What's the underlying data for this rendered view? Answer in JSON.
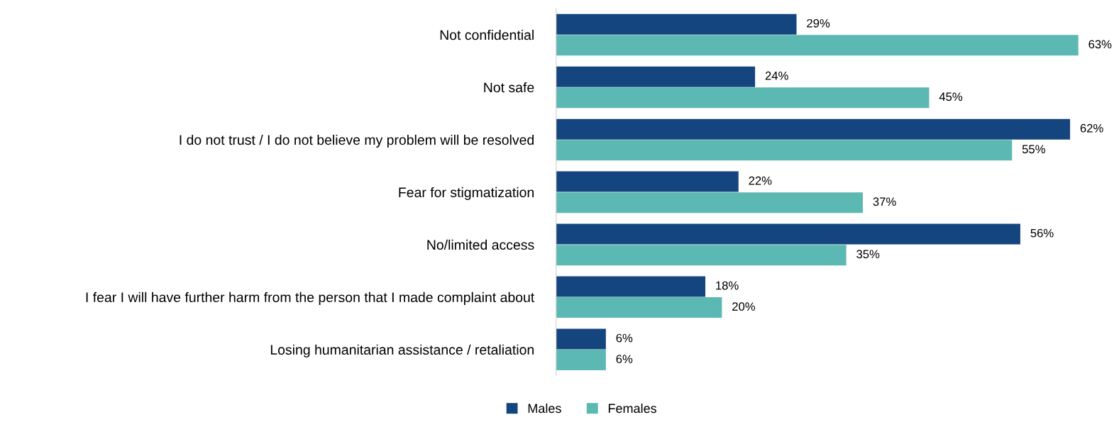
{
  "chart_data": {
    "type": "bar",
    "orientation": "horizontal",
    "categories": [
      "Not confidential",
      "Not safe",
      "I do not trust / I do not believe my problem will be resolved",
      "Fear for stigmatization",
      "No/limited access",
      "I fear I will have further harm from the person that I made complaint about",
      "Losing humanitarian assistance / retaliation"
    ],
    "series": [
      {
        "name": "Males",
        "color": "#15457f",
        "values": [
          29,
          24,
          62,
          22,
          56,
          18,
          6
        ],
        "value_labels": [
          "29%",
          "24%",
          "62%",
          "22%",
          "56%",
          "18%",
          "6%"
        ]
      },
      {
        "name": "Females",
        "color": "#5cb8b2",
        "values": [
          63,
          45,
          55,
          37,
          35,
          20,
          6
        ],
        "value_labels": [
          "63%",
          "45%",
          "55%",
          "37%",
          "35%",
          "20%",
          "6%"
        ]
      }
    ],
    "legend": "bottom",
    "grid": false
  }
}
